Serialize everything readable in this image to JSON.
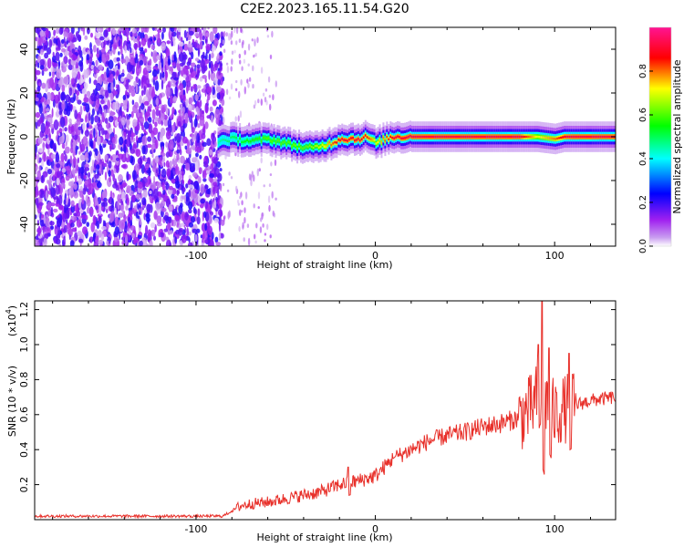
{
  "title": "C2E2.2023.165.11.54.G20",
  "chart_data": [
    {
      "type": "heatmap",
      "xlabel": "Height of straight line (km)",
      "ylabel": "Frequency (Hz)",
      "xlim": [
        -190,
        134
      ],
      "ylim": [
        -50,
        50
      ],
      "x_ticks": [
        -100,
        0,
        100
      ],
      "y_ticks": [
        -40,
        -20,
        0,
        20,
        40
      ],
      "noise_region_x": [
        -190,
        -85
      ],
      "scatter_region_x": [
        -85,
        -55
      ],
      "signal_trace": {
        "x": [
          -88,
          -80,
          -70,
          -60,
          -50,
          -45,
          -40,
          -35,
          -30,
          -25,
          -20,
          -15,
          -10,
          -5,
          0,
          5,
          10,
          20,
          40,
          60,
          80,
          90,
          100,
          105,
          110,
          120,
          134
        ],
        "freq": [
          -2,
          -1,
          -2,
          -1,
          -3,
          -4,
          -5,
          -5,
          -4,
          -3,
          -1,
          -1,
          -1,
          0,
          -3,
          -1,
          0,
          0,
          0,
          0,
          0,
          0,
          -1,
          0,
          0,
          0,
          0
        ],
        "peak_amplitude": [
          0.45,
          0.5,
          0.55,
          0.6,
          0.6,
          0.62,
          0.6,
          0.65,
          0.7,
          0.8,
          0.9,
          0.9,
          0.9,
          0.85,
          0.7,
          0.8,
          0.9,
          0.92,
          0.92,
          0.92,
          0.92,
          0.7,
          0.8,
          0.9,
          0.92,
          0.92,
          0.92
        ]
      },
      "colorbar": {
        "label": "Normalized spectral amplitude",
        "range": [
          0,
          1
        ],
        "ticks": [
          "0.0",
          "0.2",
          "0.4",
          "0.6",
          "0.8"
        ],
        "colors": [
          "#ffffff",
          "#a020f0",
          "#0000ff",
          "#00ffff",
          "#00ff00",
          "#ffff00",
          "#ff0000",
          "#ff1493"
        ]
      }
    },
    {
      "type": "line",
      "xlabel": "Height of straight line (km)",
      "ylabel": "SNR (10 * v/v)",
      "y_multiplier": "(x10",
      "y_multiplier_exp": "4",
      "y_multiplier_close": ")",
      "xlim": [
        -190,
        134
      ],
      "ylim": [
        0,
        1.25
      ],
      "x_ticks": [
        -100,
        0,
        100
      ],
      "y_ticks": [
        "0.2",
        "0.4",
        "0.6",
        "0.8",
        "1.0",
        "1.2"
      ],
      "line_color": "#e8302a",
      "series": [
        {
          "x": [
            -190,
            -120,
            -85,
            -75,
            -70,
            -60,
            -50,
            -40,
            -30,
            -20,
            -10,
            0,
            5,
            10,
            20,
            30,
            40,
            50,
            60,
            70,
            80,
            85,
            88,
            90,
            92,
            95,
            100,
            105,
            110,
            120,
            134
          ],
          "values": [
            0.02,
            0.02,
            0.02,
            0.08,
            0.09,
            0.1,
            0.12,
            0.14,
            0.16,
            0.2,
            0.22,
            0.25,
            0.3,
            0.35,
            0.4,
            0.45,
            0.48,
            0.5,
            0.53,
            0.55,
            0.58,
            0.62,
            0.65,
            0.7,
            0.75,
            0.68,
            0.6,
            0.63,
            0.65,
            0.68,
            0.7
          ]
        }
      ],
      "spikes": [
        {
          "x": -15,
          "value": 0.3
        },
        {
          "x": 10,
          "value": 0.35
        },
        {
          "x": 91,
          "value": 1.0
        },
        {
          "x": 93,
          "value": 1.25
        },
        {
          "x": 97,
          "value": 0.98
        },
        {
          "x": 108,
          "value": 0.95
        }
      ]
    }
  ]
}
